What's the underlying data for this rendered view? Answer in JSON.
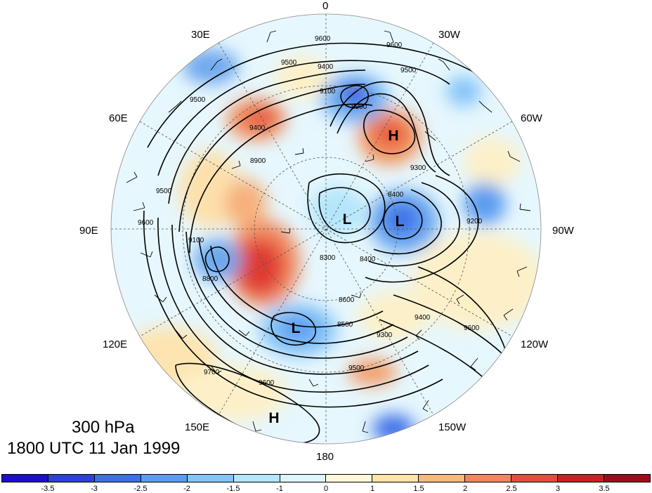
{
  "title": {
    "level": "300 hPa",
    "datetime": "1800 UTC 11 Jan 1999"
  },
  "longitude_labels": {
    "lon_0": "0",
    "lon_30e": "30E",
    "lon_30w": "30W",
    "lon_60e": "60E",
    "lon_60w": "60W",
    "lon_90e": "90E",
    "lon_90w": "90W",
    "lon_120e": "120E",
    "lon_120w": "120W",
    "lon_150e": "150E",
    "lon_150w": "150W",
    "lon_180": "180"
  },
  "pressure_centers": [
    {
      "id": "h-atlantic",
      "label": "H"
    },
    {
      "id": "l-arctic",
      "label": "L"
    },
    {
      "id": "l-canada",
      "label": "L"
    },
    {
      "id": "l-siberia",
      "label": "L"
    },
    {
      "id": "h-pacific",
      "label": "H"
    }
  ],
  "contour_labels": [
    "9600",
    "9600",
    "9500",
    "9400",
    "9500",
    "9100",
    "8900",
    "9400",
    "9500",
    "9300",
    "8400",
    "8900",
    "9200",
    "9500",
    "9600",
    "9100",
    "8800",
    "8300",
    "8400",
    "8600",
    "8500",
    "9300",
    "9400",
    "9600",
    "9500",
    "9700",
    "9600"
  ],
  "colorbar": {
    "colors": [
      "#1c0dcf",
      "#2d3fe0",
      "#3d6fe8",
      "#5b9cf0",
      "#85c4f8",
      "#b4e6fb",
      "#ddf5fd",
      "#fff8dc",
      "#fde4a8",
      "#f9b97c",
      "#f2855e",
      "#e84b3c",
      "#cc1f25",
      "#a10a1c"
    ],
    "tick_labels": [
      "-3.5",
      "-3",
      "-2.5",
      "-2",
      "-1.5",
      "-1",
      "0",
      "1",
      "1.5",
      "2",
      "2.5",
      "3",
      "3.5"
    ]
  }
}
